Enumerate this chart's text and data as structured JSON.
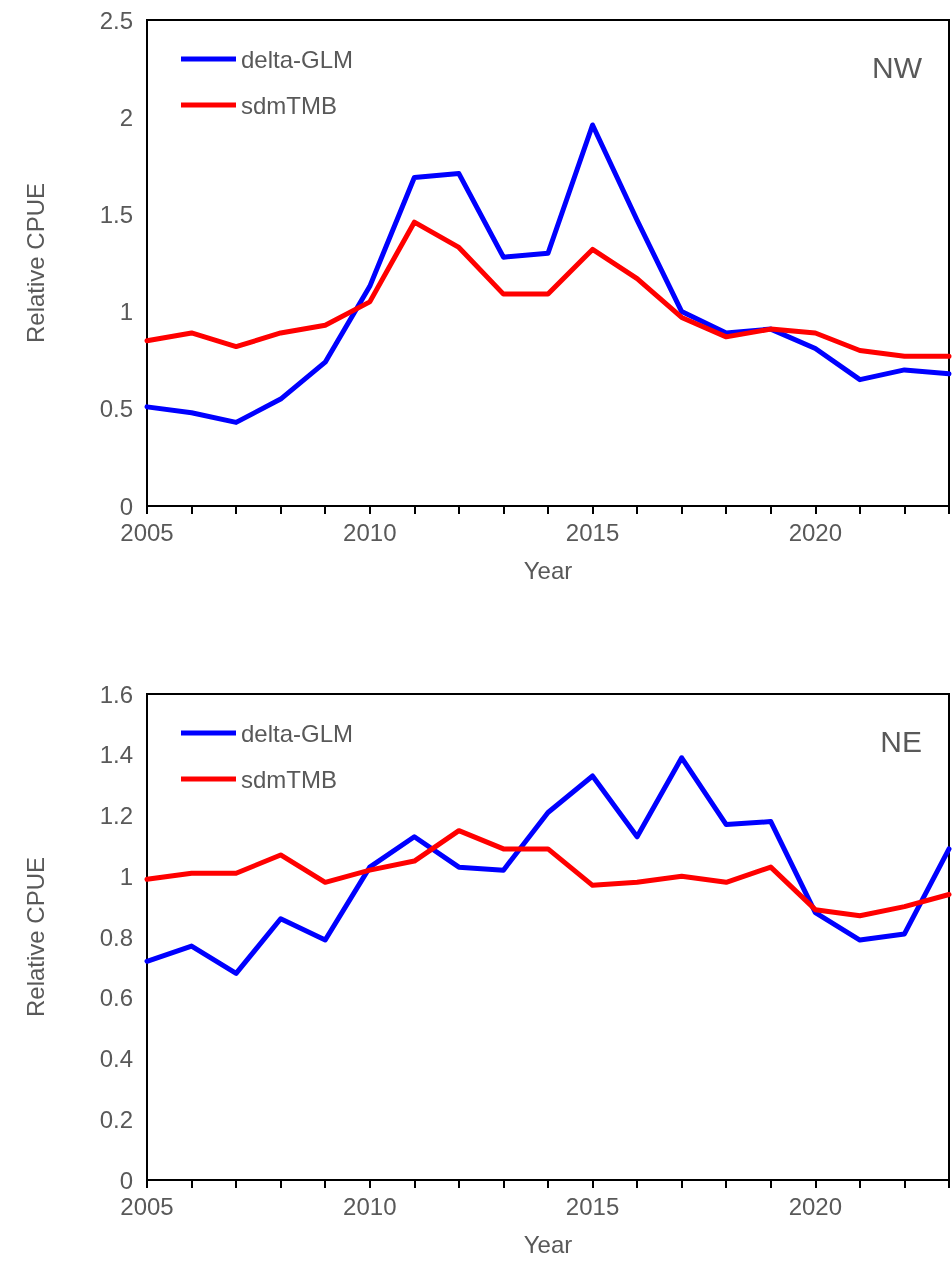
{
  "chart_data": [
    {
      "type": "line",
      "xlabel": "Year",
      "ylabel": "Relative CPUE",
      "annotations": [
        "NW"
      ],
      "x": [
        2005,
        2006,
        2007,
        2008,
        2009,
        2010,
        2011,
        2012,
        2013,
        2014,
        2015,
        2016,
        2017,
        2018,
        2019,
        2020,
        2021,
        2022,
        2023
      ],
      "series": [
        {
          "name": "delta-GLM",
          "color": "#0000ff",
          "values": [
            0.51,
            0.48,
            0.43,
            0.55,
            0.74,
            1.13,
            1.69,
            1.71,
            1.28,
            1.3,
            1.96,
            1.47,
            1.0,
            0.89,
            0.91,
            0.81,
            0.65,
            0.7,
            0.68
          ]
        },
        {
          "name": "sdmTMB",
          "color": "#ff0000",
          "values": [
            0.85,
            0.89,
            0.82,
            0.89,
            0.93,
            1.05,
            1.46,
            1.33,
            1.09,
            1.09,
            1.32,
            1.17,
            0.97,
            0.87,
            0.91,
            0.89,
            0.8,
            0.77,
            0.77
          ]
        }
      ],
      "xlim": [
        2005,
        2023
      ],
      "ylim": [
        0,
        2.5
      ],
      "xticks": [
        2005,
        {
          "value": 2006,
          "label": null
        },
        {
          "value": 2007,
          "label": null
        },
        {
          "value": 2008,
          "label": null
        },
        {
          "value": 2009,
          "label": null
        },
        2010,
        {
          "value": 2011,
          "label": null
        },
        {
          "value": 2012,
          "label": null
        },
        {
          "value": 2013,
          "label": null
        },
        {
          "value": 2014,
          "label": null
        },
        2015,
        {
          "value": 2016,
          "label": null
        },
        {
          "value": 2017,
          "label": null
        },
        {
          "value": 2018,
          "label": null
        },
        {
          "value": 2019,
          "label": null
        },
        2020,
        {
          "value": 2021,
          "label": null
        },
        {
          "value": 2022,
          "label": null
        },
        {
          "value": 2023,
          "label": null
        }
      ],
      "yticks": [
        0,
        0.5,
        1,
        1.5,
        2,
        2.5
      ],
      "grid": false,
      "legend": "top left",
      "marker": "none",
      "line_style": "solid"
    },
    {
      "type": "line",
      "xlabel": "Year",
      "ylabel": "Relative CPUE",
      "annotations": [
        "NE"
      ],
      "x": [
        2005,
        2006,
        2007,
        2008,
        2009,
        2010,
        2011,
        2012,
        2013,
        2014,
        2015,
        2016,
        2017,
        2018,
        2019,
        2020,
        2021,
        2022,
        2023
      ],
      "series": [
        {
          "name": "delta-GLM",
          "color": "#0000ff",
          "values": [
            0.72,
            0.77,
            0.68,
            0.86,
            0.79,
            1.03,
            1.13,
            1.03,
            1.02,
            1.21,
            1.33,
            1.13,
            1.39,
            1.17,
            1.18,
            0.88,
            0.79,
            0.81,
            1.09
          ]
        },
        {
          "name": "sdmTMB",
          "color": "#ff0000",
          "values": [
            0.99,
            1.01,
            1.01,
            1.07,
            0.98,
            1.02,
            1.05,
            1.15,
            1.09,
            1.09,
            0.97,
            0.98,
            1.0,
            0.98,
            1.03,
            0.89,
            0.87,
            0.9,
            0.94
          ]
        }
      ],
      "xlim": [
        2005,
        2023
      ],
      "ylim": [
        0,
        1.6
      ],
      "xticks": [
        2005,
        {
          "value": 2006,
          "label": null
        },
        {
          "value": 2007,
          "label": null
        },
        {
          "value": 2008,
          "label": null
        },
        {
          "value": 2009,
          "label": null
        },
        2010,
        {
          "value": 2011,
          "label": null
        },
        {
          "value": 2012,
          "label": null
        },
        {
          "value": 2013,
          "label": null
        },
        {
          "value": 2014,
          "label": null
        },
        2015,
        {
          "value": 2016,
          "label": null
        },
        {
          "value": 2017,
          "label": null
        },
        {
          "value": 2018,
          "label": null
        },
        {
          "value": 2019,
          "label": null
        },
        2020,
        {
          "value": 2021,
          "label": null
        },
        {
          "value": 2022,
          "label": null
        },
        {
          "value": 2023,
          "label": null
        }
      ],
      "yticks": [
        0,
        0.2,
        0.4,
        0.6,
        0.8,
        1,
        1.2,
        1.4,
        1.6
      ],
      "grid": false,
      "legend": "top left",
      "marker": "none",
      "line_style": "solid"
    }
  ]
}
